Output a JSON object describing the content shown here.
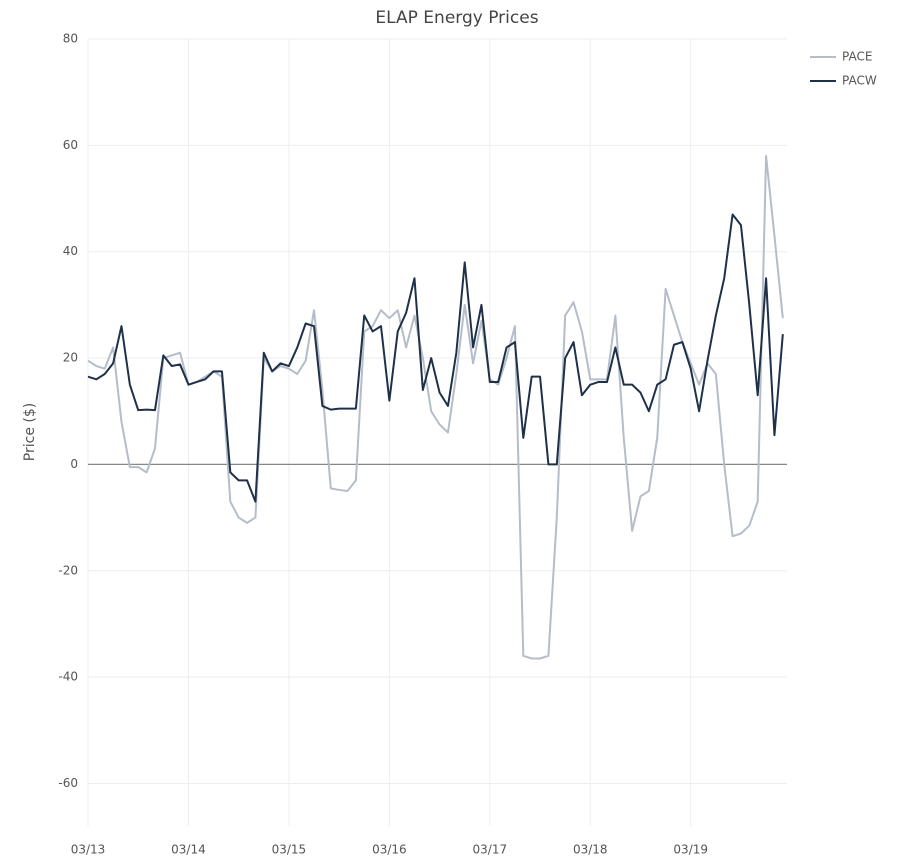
{
  "chart_data": {
    "type": "line",
    "title": "ELAP Energy Prices",
    "y_label": "Price ($)",
    "x": [
      0,
      2,
      4,
      6,
      8,
      10,
      12,
      14,
      16,
      18,
      20,
      22,
      24,
      26,
      28,
      30,
      32,
      34,
      36,
      38,
      40,
      42,
      44,
      46,
      48,
      50,
      52,
      54,
      56,
      58,
      60,
      62,
      64,
      66,
      68,
      70,
      72,
      74,
      76,
      78,
      80,
      82,
      84,
      86,
      88,
      90,
      92,
      94,
      96,
      98,
      100,
      102,
      104,
      106,
      108,
      110,
      112,
      114,
      116,
      118,
      120,
      122,
      124,
      126,
      128,
      130,
      132,
      134,
      136,
      138,
      140,
      142,
      144,
      146,
      148,
      150,
      152,
      154,
      156,
      158,
      160,
      162,
      164,
      166
    ],
    "series": [
      {
        "name": "PACE",
        "color": "#b5bdc9",
        "values": [
          19.5,
          18.5,
          18,
          22,
          8,
          -0.5,
          -0.5,
          -1.5,
          3,
          20,
          20.5,
          21,
          15,
          15.5,
          16.5,
          17.5,
          16.5,
          -7,
          -10,
          -11,
          -10,
          20,
          17.5,
          18.5,
          18,
          17,
          19.5,
          29,
          14,
          -4.5,
          -4.8,
          -5,
          -3,
          25,
          26,
          29,
          27.5,
          29,
          22,
          28,
          20,
          10,
          7.5,
          6,
          17,
          30,
          19,
          27,
          16,
          15,
          20,
          26,
          -36,
          -36.5,
          -36.5,
          -36,
          -10,
          28,
          30.5,
          25,
          16,
          16,
          16,
          28,
          5,
          -12.5,
          -6,
          -5,
          5,
          33,
          28,
          23,
          19,
          15,
          19,
          17,
          0,
          -13.5,
          -13,
          -11.5,
          -7,
          58,
          43,
          27.5
        ]
      },
      {
        "name": "PACW",
        "color": "#1f3148",
        "values": [
          16.5,
          16,
          17,
          19,
          26,
          15,
          10.2,
          10.3,
          10.2,
          20.5,
          18.5,
          18.8,
          15,
          15.5,
          16,
          17.5,
          17.5,
          -1.5,
          -3,
          -3,
          -7,
          21,
          17.5,
          19,
          18.5,
          22,
          26.5,
          26,
          11,
          10.3,
          10.5,
          10.5,
          10.5,
          28,
          25,
          26,
          12,
          25,
          28.5,
          35,
          14,
          20,
          13.5,
          11,
          21,
          38,
          22,
          30,
          15.5,
          15.5,
          22,
          23,
          5,
          16.5,
          16.5,
          0,
          0,
          20,
          23,
          13,
          15,
          15.5,
          15.5,
          22,
          15,
          15,
          13.5,
          10,
          15,
          16,
          22.5,
          23,
          18,
          10,
          19.5,
          28,
          35,
          47,
          45,
          30,
          13,
          35,
          5.5,
          24.5
        ]
      }
    ],
    "xlim": [
      0,
      167
    ],
    "xticks": [
      {
        "value": 0,
        "label": "03/13"
      },
      {
        "value": 24,
        "label": "03/14"
      },
      {
        "value": 48,
        "label": "03/15"
      },
      {
        "value": 72,
        "label": "03/16"
      },
      {
        "value": 96,
        "label": "03/17"
      },
      {
        "value": 120,
        "label": "03/18"
      },
      {
        "value": 144,
        "label": "03/19"
      }
    ],
    "ylim": [
      -68,
      80
    ],
    "yticks": [
      -60,
      -40,
      -20,
      0,
      20,
      40,
      60,
      80
    ],
    "grid": true,
    "legend": "top-right"
  }
}
